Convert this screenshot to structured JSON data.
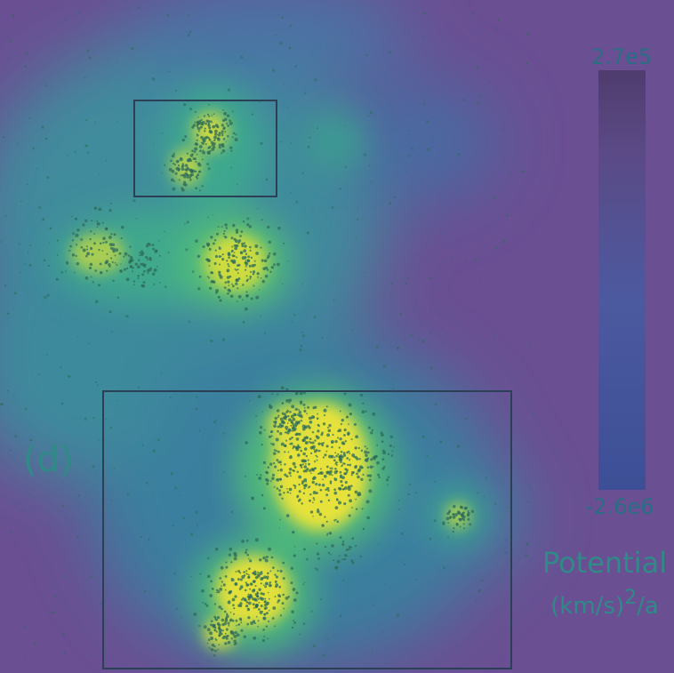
{
  "panel_label": "(d)",
  "chart_data": {
    "type": "heatmap",
    "colormap": "viridis",
    "colormap_colors": [
      "#440154",
      "#3b528b",
      "#21918c",
      "#5ec962",
      "#fde725"
    ],
    "overlay_dots_color": "#2c6b5a",
    "colorbar": {
      "max_label": "2.7e5",
      "min_label": "-2.6e6",
      "max": 270000,
      "min": -2600000,
      "title": "Potential",
      "units_base": "(km/s)",
      "units_exp": "2",
      "units_tail": "/a"
    },
    "regions": [
      {
        "name": "upper-region-box"
      },
      {
        "name": "lower-region-box"
      }
    ]
  }
}
